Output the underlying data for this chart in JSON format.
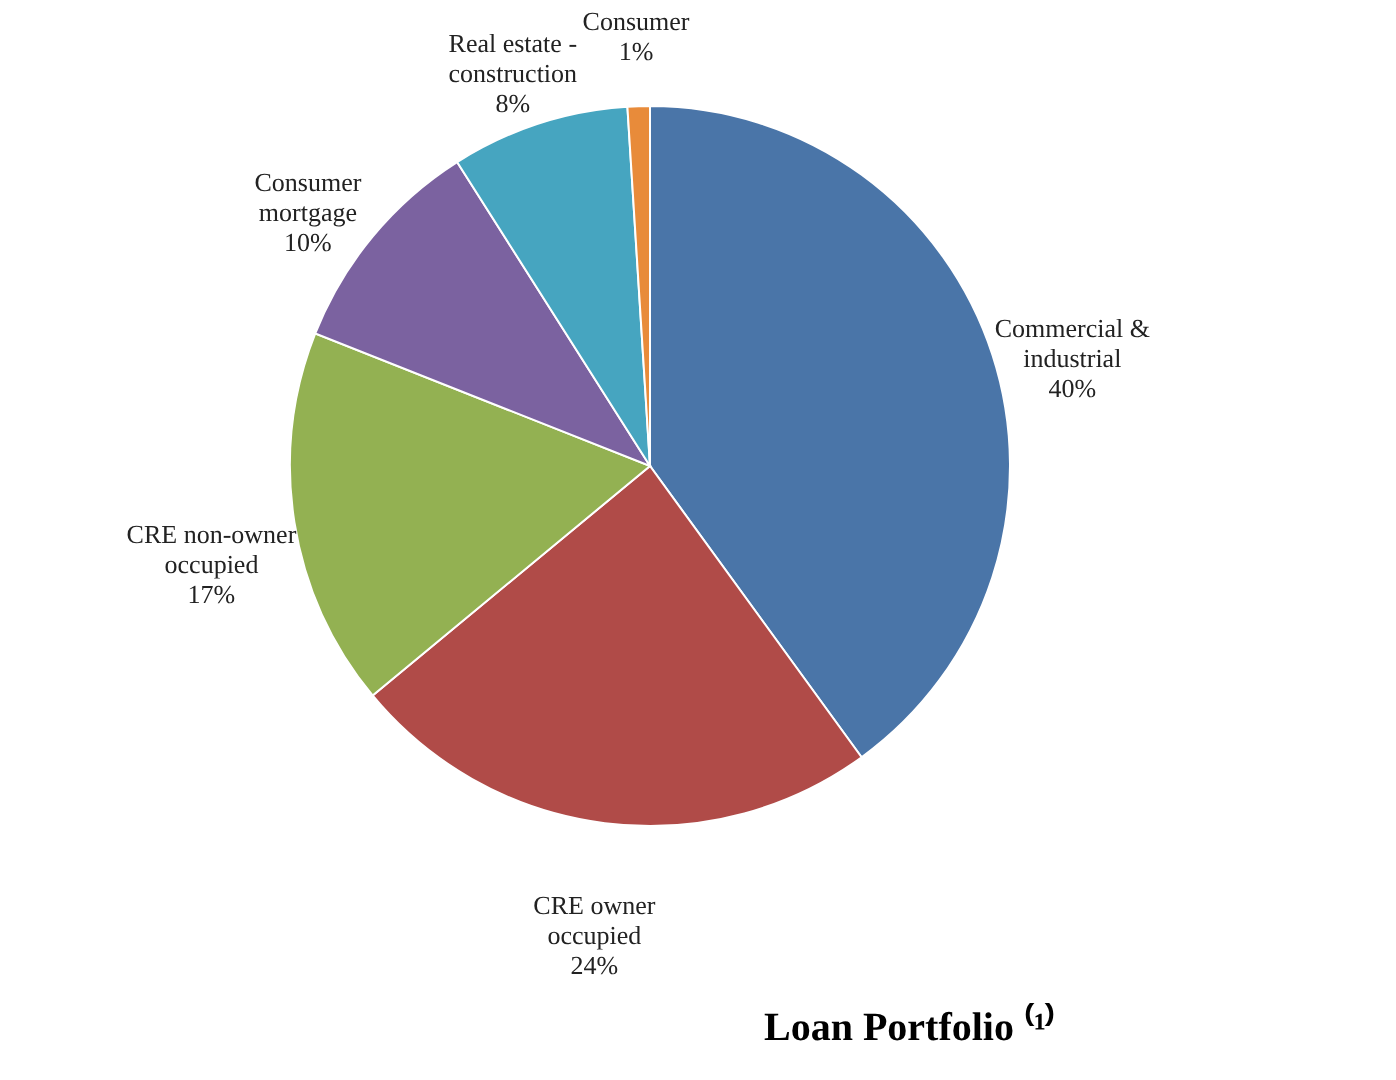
{
  "chart_data": {
    "type": "pie",
    "title": "Loan Portfolio ⁽¹⁾",
    "categories": [
      "Commercial &\nindustrial",
      "CRE owner\noccupied",
      "CRE non-owner\noccupied",
      "Consumer\nmortgage",
      "Real estate -\nconstruction",
      "Consumer"
    ],
    "values": [
      40,
      24,
      17,
      10,
      8,
      1
    ],
    "value_labels": [
      "40%",
      "24%",
      "17%",
      "10%",
      "8%",
      "1%"
    ],
    "colors": [
      "#4a75a8",
      "#b04b48",
      "#93b152",
      "#7b62a0",
      "#46a5c0",
      "#e88b3a"
    ],
    "legend": false
  }
}
